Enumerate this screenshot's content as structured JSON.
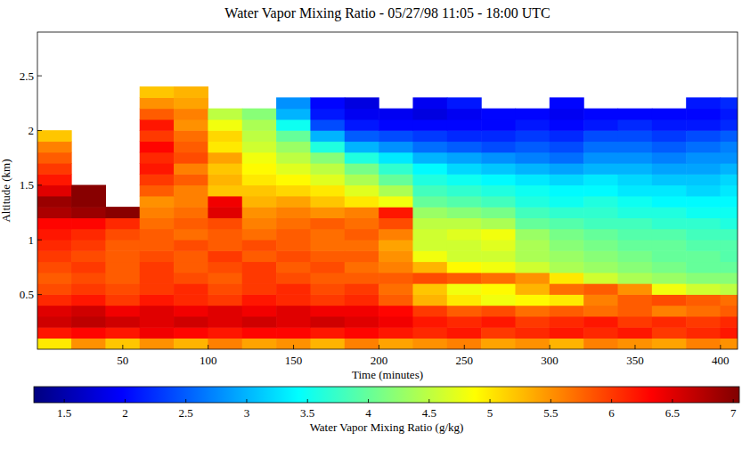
{
  "chart_data": {
    "type": "heatmap",
    "title": "Water Vapor Mixing Ratio - 05/27/98  11:05 - 18:00 UTC",
    "x_label": "Time (minutes)",
    "y_label": "Altitude (km)",
    "xlim": [
      0,
      410
    ],
    "xticks": [
      50,
      100,
      150,
      200,
      250,
      300,
      350,
      400
    ],
    "ylim": [
      0,
      2.9
    ],
    "yticks": [
      0.5,
      1,
      1.5,
      2,
      2.5
    ],
    "x": [
      10,
      30,
      50,
      70,
      90,
      110,
      130,
      150,
      170,
      190,
      210,
      230,
      250,
      270,
      290,
      310,
      330,
      350,
      370,
      390,
      410
    ],
    "y": [
      0.05,
      0.15,
      0.25,
      0.35,
      0.45,
      0.55,
      0.65,
      0.75,
      0.85,
      0.95,
      1.05,
      1.15,
      1.25,
      1.35,
      1.45,
      1.55,
      1.65,
      1.75,
      1.85,
      1.95,
      2.05,
      2.15,
      2.25,
      2.35
    ],
    "cells": [
      [
        5.0,
        5.5,
        5.2,
        5.5,
        5.3,
        5.6,
        5.4,
        5.5,
        5.3,
        5.6,
        5.4,
        5.5,
        5.6,
        5.4,
        5.5,
        5.3,
        5.6,
        5.5,
        5.4,
        5.6,
        5.5
      ],
      [
        6.2,
        6.3,
        6.2,
        6.4,
        6.3,
        6.2,
        6.3,
        6.3,
        6.2,
        6.3,
        6.2,
        6.1,
        6.2,
        6.0,
        6.1,
        6.2,
        6.1,
        6.2,
        6.0,
        6.1,
        6.2
      ],
      [
        6.6,
        6.7,
        6.6,
        6.5,
        6.6,
        6.5,
        6.6,
        6.5,
        6.6,
        6.5,
        6.4,
        6.2,
        6.1,
        6.2,
        6.0,
        6.1,
        6.2,
        6.0,
        6.1,
        6.0,
        6.1
      ],
      [
        6.5,
        6.6,
        6.4,
        6.5,
        6.4,
        6.5,
        6.4,
        6.5,
        6.4,
        6.4,
        6.3,
        6.0,
        5.8,
        5.9,
        5.7,
        5.8,
        5.7,
        5.8,
        5.6,
        5.7,
        5.8
      ],
      [
        6.1,
        6.2,
        6.0,
        6.2,
        6.1,
        6.0,
        6.2,
        6.1,
        6.0,
        6.1,
        5.8,
        5.3,
        5.0,
        4.8,
        4.9,
        5.0,
        5.6,
        5.8,
        5.9,
        5.8,
        5.7
      ],
      [
        5.9,
        6.0,
        5.9,
        6.0,
        6.1,
        5.9,
        6.0,
        6.1,
        5.9,
        6.0,
        5.7,
        5.2,
        4.8,
        4.9,
        5.3,
        5.7,
        5.8,
        5.5,
        4.8,
        4.6,
        4.5
      ],
      [
        5.8,
        5.9,
        5.8,
        6.0,
        5.9,
        5.8,
        6.0,
        5.9,
        5.8,
        5.8,
        5.8,
        5.9,
        5.8,
        5.7,
        5.5,
        5.0,
        4.6,
        4.4,
        4.3,
        4.2,
        4.2
      ],
      [
        5.9,
        6.0,
        5.8,
        6.0,
        5.8,
        5.9,
        6.0,
        5.8,
        5.9,
        5.7,
        5.6,
        5.3,
        4.9,
        4.8,
        4.6,
        4.4,
        4.3,
        4.2,
        4.1,
        4.0,
        4.0
      ],
      [
        6.0,
        5.9,
        5.8,
        5.9,
        5.8,
        6.0,
        5.8,
        5.9,
        5.8,
        5.8,
        5.5,
        4.8,
        4.6,
        4.6,
        4.4,
        4.3,
        4.2,
        4.1,
        4.0,
        4.0,
        3.9
      ],
      [
        6.1,
        6.0,
        5.8,
        5.8,
        5.9,
        5.8,
        5.9,
        5.8,
        5.7,
        5.7,
        5.4,
        4.6,
        4.6,
        4.7,
        4.4,
        4.2,
        4.1,
        4.0,
        4.0,
        3.9,
        3.9
      ],
      [
        6.2,
        6.1,
        5.9,
        5.8,
        5.7,
        5.8,
        5.7,
        5.8,
        5.7,
        5.8,
        5.6,
        4.6,
        4.7,
        4.8,
        4.3,
        4.1,
        4.0,
        3.9,
        3.9,
        3.8,
        3.8
      ],
      [
        6.3,
        6.3,
        6.1,
        5.7,
        5.8,
        5.9,
        5.6,
        5.7,
        5.8,
        5.7,
        5.9,
        4.5,
        4.5,
        4.4,
        4.0,
        3.9,
        3.8,
        3.8,
        3.7,
        3.7,
        3.6
      ],
      [
        6.8,
        6.9,
        7.0,
        5.6,
        5.7,
        6.5,
        5.5,
        5.6,
        5.5,
        5.6,
        6.2,
        4.3,
        4.2,
        4.1,
        3.8,
        3.7,
        3.7,
        3.6,
        3.6,
        3.5,
        3.5
      ],
      [
        6.9,
        7.0,
        null,
        5.5,
        5.6,
        6.4,
        5.3,
        5.4,
        5.2,
        5.0,
        4.8,
        4.0,
        3.9,
        3.8,
        3.6,
        3.5,
        3.6,
        3.5,
        3.4,
        3.4,
        3.4
      ],
      [
        6.5,
        7.0,
        null,
        5.8,
        5.6,
        5.2,
        5.2,
        5.1,
        5.0,
        4.7,
        4.4,
        3.8,
        3.7,
        3.6,
        3.5,
        3.4,
        3.4,
        3.3,
        3.3,
        3.2,
        3.3
      ],
      [
        6.2,
        null,
        null,
        6.0,
        5.8,
        5.3,
        5.0,
        4.9,
        4.7,
        4.4,
        4.0,
        3.6,
        3.5,
        3.4,
        3.3,
        3.2,
        3.3,
        3.2,
        3.1,
        3.1,
        3.2
      ],
      [
        6.0,
        null,
        null,
        6.2,
        5.6,
        5.2,
        4.9,
        4.7,
        4.5,
        4.1,
        3.7,
        3.4,
        3.2,
        3.1,
        3.0,
        2.9,
        3.0,
        3.0,
        2.9,
        2.9,
        3.0
      ],
      [
        5.8,
        null,
        null,
        6.1,
        5.9,
        5.4,
        4.8,
        4.5,
        4.2,
        3.6,
        3.3,
        3.0,
        2.9,
        2.8,
        2.7,
        2.6,
        2.8,
        2.8,
        2.7,
        2.8,
        2.8
      ],
      [
        5.6,
        null,
        null,
        6.3,
        5.8,
        5.0,
        4.6,
        4.3,
        3.6,
        3.0,
        2.8,
        2.6,
        2.5,
        2.4,
        2.5,
        2.4,
        2.6,
        2.6,
        2.5,
        2.6,
        2.7
      ],
      [
        5.2,
        null,
        null,
        6.0,
        5.7,
        5.1,
        4.5,
        4.0,
        3.0,
        2.5,
        2.4,
        2.3,
        2.2,
        2.2,
        2.3,
        2.2,
        2.4,
        2.4,
        2.3,
        2.4,
        2.5
      ],
      [
        null,
        null,
        null,
        6.2,
        5.5,
        4.8,
        4.4,
        3.5,
        2.4,
        2.1,
        2.0,
        2.0,
        2.0,
        2.0,
        2.1,
        2.0,
        2.1,
        2.2,
        2.1,
        2.1,
        2.2
      ],
      [
        null,
        null,
        null,
        5.8,
        5.6,
        4.5,
        4.2,
        3.0,
        2.1,
        1.9,
        1.9,
        1.8,
        1.9,
        2.0,
        2.0,
        1.9,
        2.0,
        2.0,
        2.0,
        2.0,
        2.1
      ],
      [
        null,
        null,
        null,
        5.5,
        5.4,
        null,
        null,
        2.8,
        2.0,
        1.8,
        null,
        1.9,
        2.1,
        null,
        null,
        2.0,
        null,
        null,
        null,
        2.1,
        2.2
      ],
      [
        null,
        null,
        null,
        5.2,
        5.3,
        null,
        null,
        null,
        null,
        null,
        null,
        null,
        null,
        null,
        null,
        null,
        null,
        null,
        null,
        null,
        null
      ]
    ],
    "colorbar": {
      "range": [
        1.25,
        7.05
      ],
      "ticks": [
        1.5,
        2,
        2.5,
        3,
        3.5,
        4,
        4.5,
        5,
        5.5,
        6,
        6.5,
        7
      ],
      "label": "Water Vapor Mixing Ratio (g/kg)"
    }
  }
}
